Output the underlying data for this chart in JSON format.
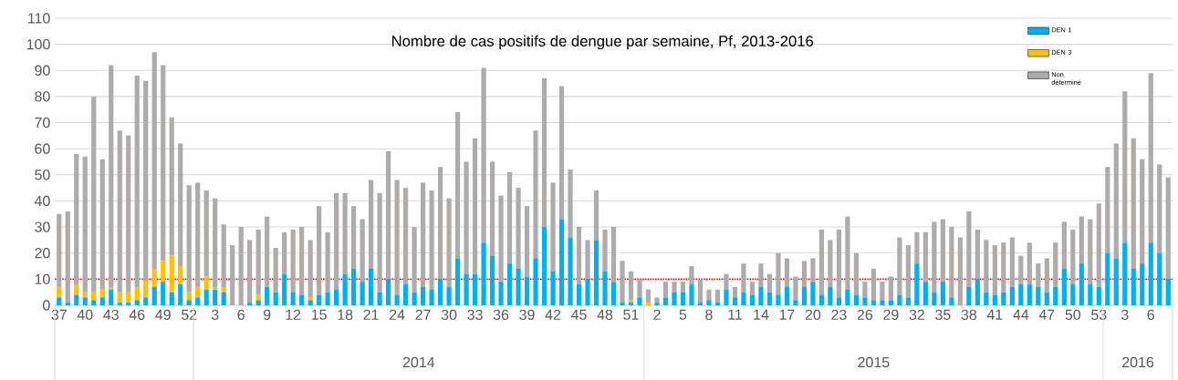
{
  "chart_data": {
    "type": "bar",
    "stacked": true,
    "title": "Nombre de cas positifs de dengue par semaine, Pf, 2013-2016",
    "categories": [
      "37",
      null,
      null,
      "40",
      null,
      null,
      "43",
      null,
      null,
      "46",
      null,
      null,
      "49",
      null,
      null,
      "52",
      null,
      null,
      "3",
      null,
      null,
      "6",
      null,
      null,
      "9",
      null,
      null,
      "12",
      null,
      null,
      "15",
      null,
      null,
      "18",
      null,
      null,
      "21",
      null,
      null,
      "24",
      null,
      null,
      "27",
      null,
      null,
      "30",
      null,
      null,
      "33",
      null,
      null,
      "36",
      null,
      null,
      "39",
      null,
      null,
      "42",
      null,
      null,
      "45",
      null,
      null,
      "48",
      null,
      null,
      "51",
      null,
      null,
      "2",
      null,
      null,
      "5",
      null,
      null,
      "8",
      null,
      null,
      "11",
      null,
      null,
      "14",
      null,
      null,
      "17",
      null,
      null,
      "20",
      null,
      null,
      "23",
      null,
      null,
      "26",
      null,
      null,
      "29",
      null,
      null,
      "32",
      null,
      null,
      "35",
      null,
      null,
      "38",
      null,
      null,
      "41",
      null,
      null,
      "44",
      null,
      null,
      "47",
      null,
      null,
      "50",
      null,
      null,
      "53",
      null,
      null,
      "3",
      null,
      null,
      "6",
      null,
      null
    ],
    "series": [
      {
        "name": "DEN 1",
        "color": "#00b0f0",
        "values": [
          3,
          1,
          4,
          3,
          2,
          3,
          6,
          1,
          1,
          2,
          3,
          7,
          9,
          5,
          8,
          2,
          3,
          6,
          6,
          5,
          0,
          0,
          1,
          2,
          7,
          5,
          12,
          5,
          4,
          2,
          4,
          5,
          6,
          12,
          14,
          9,
          14,
          5,
          10,
          4,
          8,
          5,
          7,
          6,
          10,
          7,
          18,
          12,
          12,
          24,
          19,
          9,
          16,
          14,
          11,
          18,
          30,
          13,
          33,
          26,
          8,
          10,
          25,
          13,
          9,
          1,
          1,
          3,
          0,
          1,
          3,
          5,
          5,
          8,
          1,
          2,
          1,
          6,
          3,
          5,
          4,
          7,
          5,
          4,
          7,
          2,
          7,
          9,
          4,
          7,
          3,
          6,
          4,
          3,
          2,
          2,
          2,
          4,
          3,
          16,
          9,
          5,
          9,
          3,
          0,
          7,
          10,
          5,
          4,
          5,
          7,
          8,
          8,
          7,
          5,
          7,
          14,
          8,
          16,
          8,
          7,
          20,
          18,
          24,
          14,
          16,
          24,
          20,
          10
        ]
      },
      {
        "name": "DEN 3",
        "color": "#ffc000",
        "values": [
          4,
          0,
          4,
          2,
          3,
          3,
          1,
          4,
          4,
          5,
          7,
          7,
          8,
          14,
          7,
          3,
          4,
          5,
          1,
          2,
          0,
          0,
          0,
          2,
          0,
          0,
          0,
          0,
          0,
          1,
          0,
          0,
          0,
          0,
          0,
          0,
          0,
          0,
          0,
          0,
          0,
          0,
          0,
          0,
          0,
          0,
          0,
          0,
          0,
          0,
          0,
          0,
          0,
          0,
          0,
          0,
          0,
          0,
          0,
          0,
          0,
          0,
          0,
          0,
          0,
          0,
          1,
          0,
          1,
          0,
          0,
          0,
          0,
          0,
          0,
          0,
          0,
          0,
          0,
          0,
          0,
          0,
          0,
          0,
          0,
          0,
          0,
          0,
          0,
          0,
          0,
          0,
          0,
          0,
          0,
          0,
          0,
          0,
          0,
          0,
          0,
          0,
          0,
          0,
          0,
          0,
          0,
          0,
          0,
          0,
          0,
          0,
          0,
          0,
          0,
          0,
          0,
          0,
          0,
          0,
          0,
          0,
          0,
          0,
          0,
          0,
          0,
          0,
          0
        ]
      },
      {
        "name": "Non déterminé",
        "color": "#aeabab",
        "values": [
          28,
          35,
          50,
          52,
          75,
          50,
          85,
          62,
          60,
          81,
          76,
          83,
          75,
          53,
          47,
          41,
          40,
          33,
          34,
          24,
          23,
          30,
          24,
          25,
          27,
          17,
          16,
          24,
          26,
          22,
          34,
          23,
          37,
          31,
          24,
          24,
          34,
          38,
          49,
          44,
          37,
          25,
          40,
          38,
          43,
          34,
          56,
          43,
          52,
          67,
          36,
          33,
          35,
          31,
          27,
          49,
          57,
          34,
          51,
          26,
          22,
          15,
          19,
          16,
          21,
          16,
          11,
          7,
          5,
          2,
          6,
          4,
          4,
          7,
          9,
          4,
          5,
          6,
          4,
          11,
          5,
          9,
          7,
          16,
          11,
          9,
          10,
          9,
          25,
          18,
          26,
          28,
          16,
          6,
          12,
          7,
          9,
          22,
          20,
          12,
          19,
          27,
          24,
          27,
          26,
          29,
          19,
          20,
          19,
          19,
          19,
          11,
          16,
          9,
          13,
          17,
          18,
          21,
          18,
          25,
          32,
          33,
          44,
          58,
          50,
          40,
          65,
          34,
          39
        ]
      }
    ],
    "ylim": [
      0,
      110
    ],
    "yticks": [
      0,
      10,
      20,
      30,
      40,
      50,
      60,
      70,
      80,
      90,
      100,
      110
    ],
    "grid": "y",
    "legend": "top right",
    "ref_lines": [
      {
        "axis": "y",
        "value": 10,
        "color": "#ff0000",
        "line_style": "dotted"
      }
    ],
    "annotations": [
      "2014",
      "2015",
      "2016"
    ]
  }
}
